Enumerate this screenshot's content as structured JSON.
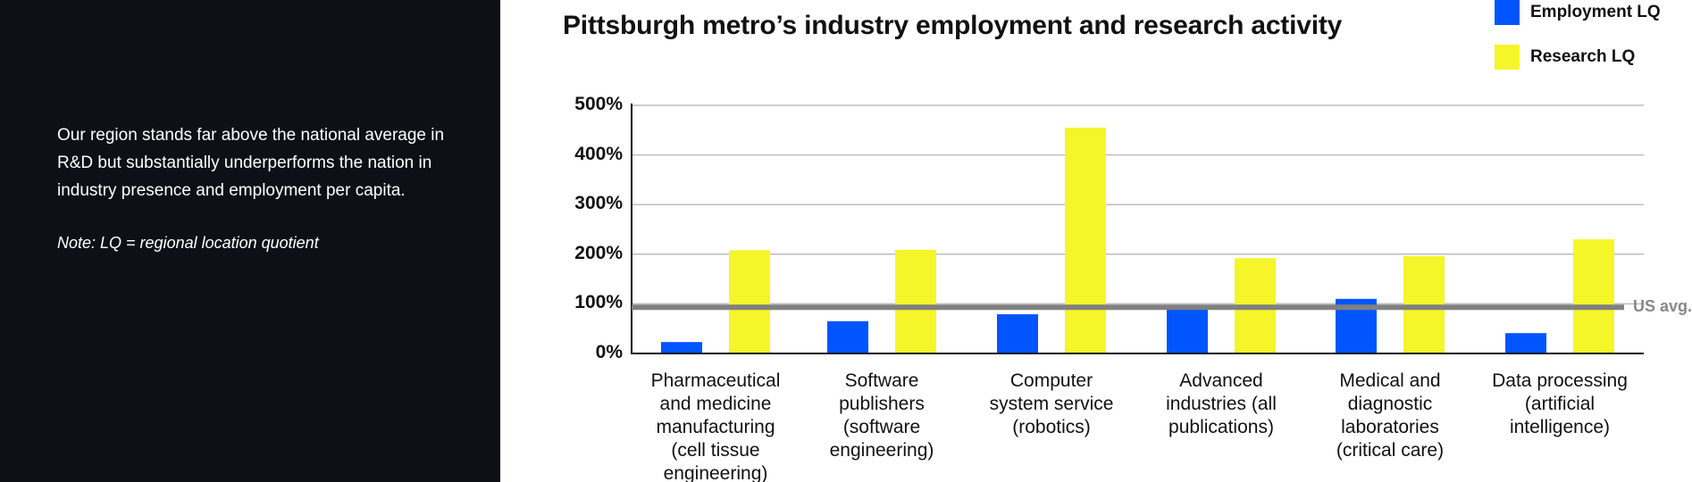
{
  "sidebar": {
    "description": "Our region stands far above the national average in R&D but substantially underperforms the nation in industry presence and employment per capita.",
    "note": "Note: LQ = regional location quotient"
  },
  "colors": {
    "sidebar_bg": "#0d1117",
    "employment": "#0055ff",
    "research": "#f5f52a",
    "reference_line": "#808080"
  },
  "chart_data": {
    "type": "bar",
    "title": "Pittsburgh metro’s industry employment and research activity",
    "xlabel": "",
    "ylabel": "",
    "ylim": [
      0,
      500
    ],
    "y_ticks": [
      {
        "value": 0,
        "label": "0%"
      },
      {
        "value": 100,
        "label": "100%"
      },
      {
        "value": 200,
        "label": "200%"
      },
      {
        "value": 300,
        "label": "300%"
      },
      {
        "value": 400,
        "label": "400%"
      },
      {
        "value": 500,
        "label": "500%"
      }
    ],
    "categories": [
      [
        "Pharmaceutical",
        "and medicine",
        "manufacturing",
        "(cell tissue",
        "engineering)"
      ],
      [
        "Software",
        "publishers",
        "(software",
        "engineering)"
      ],
      [
        "Computer",
        "system service",
        "(robotics)"
      ],
      [
        "Advanced",
        "industries (all",
        "publications)"
      ],
      [
        "Medical and",
        "diagnostic",
        "laboratories",
        "(critical care)"
      ],
      [
        "Data processing",
        "(artificial",
        "intelligence)"
      ]
    ],
    "series": [
      {
        "name": "Employment LQ",
        "values": [
          23,
          65,
          79,
          93,
          110,
          41
        ]
      },
      {
        "name": "Research LQ",
        "values": [
          208,
          209,
          455,
          192,
          196,
          230
        ]
      }
    ],
    "reference_line": {
      "value": 93,
      "label": "US avg."
    },
    "grid": true,
    "legend": "top-right"
  }
}
